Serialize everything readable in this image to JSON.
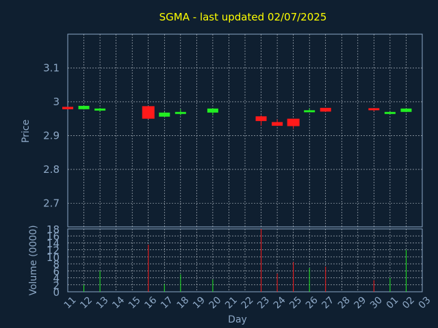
{
  "chart_data": {
    "type": "candlestick",
    "title": "SGMA - last updated 02/07/2025",
    "xlabel": "Day",
    "ylabel": "Price",
    "volume_label": "Volume (0000)",
    "categories": [
      "11",
      "12",
      "13",
      "14",
      "15",
      "16",
      "17",
      "18",
      "19",
      "20",
      "21",
      "22",
      "23",
      "24",
      "25",
      "26",
      "27",
      "28",
      "29",
      "30",
      "01",
      "02",
      "03"
    ],
    "price_ticks": [
      "3.1",
      "3",
      "2.9",
      "2.8",
      "2.7"
    ],
    "price_tick_values": [
      3.1,
      3.0,
      2.9,
      2.8,
      2.7
    ],
    "volume_ticks": [
      "18",
      "16",
      "14",
      "12",
      "10",
      "8",
      "6",
      "4",
      "2",
      "0"
    ],
    "volume_tick_values": [
      18,
      16,
      14,
      12,
      10,
      8,
      6,
      4,
      2,
      0
    ],
    "ylim": [
      2.63,
      3.2
    ],
    "vlim": [
      0,
      18
    ],
    "grid": true,
    "colors": {
      "up": "#22ee22",
      "down": "#ff1a1a",
      "grid": "#c8d0d8",
      "axis": "#8ea9c7",
      "title": "#ffff00",
      "bg": "#0f1f30"
    },
    "candles": [
      {
        "x": "11",
        "open": 2.985,
        "close": 2.978,
        "high": 2.985,
        "low": 2.978,
        "volume": 0
      },
      {
        "x": "12",
        "open": 2.978,
        "close": 2.988,
        "high": 2.989,
        "low": 2.977,
        "volume": 2
      },
      {
        "x": "13",
        "open": 2.978,
        "close": 2.98,
        "high": 2.982,
        "low": 2.97,
        "volume": 6
      },
      {
        "x": "16",
        "open": 2.987,
        "close": 2.95,
        "high": 2.988,
        "low": 2.949,
        "volume": 13.5
      },
      {
        "x": "17",
        "open": 2.956,
        "close": 2.968,
        "high": 2.97,
        "low": 2.955,
        "volume": 2.2
      },
      {
        "x": "18",
        "open": 2.966,
        "close": 2.97,
        "high": 2.978,
        "low": 2.96,
        "volume": 5
      },
      {
        "x": "20",
        "open": 2.968,
        "close": 2.98,
        "high": 2.98,
        "low": 2.96,
        "volume": 3.5
      },
      {
        "x": "23",
        "open": 2.957,
        "close": 2.943,
        "high": 2.96,
        "low": 2.93,
        "volume": 18
      },
      {
        "x": "24",
        "open": 2.94,
        "close": 2.929,
        "high": 2.948,
        "low": 2.928,
        "volume": 5.2
      },
      {
        "x": "25",
        "open": 2.95,
        "close": 2.928,
        "high": 2.95,
        "low": 2.92,
        "volume": 8.5
      },
      {
        "x": "26",
        "open": 2.97,
        "close": 2.975,
        "high": 2.981,
        "low": 2.969,
        "volume": 6.8
      },
      {
        "x": "27",
        "open": 2.982,
        "close": 2.971,
        "high": 2.982,
        "low": 2.97,
        "volume": 7.2
      },
      {
        "x": "30",
        "open": 2.981,
        "close": 2.976,
        "high": 2.981,
        "low": 2.972,
        "volume": 3.3
      },
      {
        "x": "01",
        "open": 2.966,
        "close": 2.97,
        "high": 2.971,
        "low": 2.965,
        "volume": 4
      },
      {
        "x": "02",
        "open": 2.97,
        "close": 2.98,
        "high": 2.98,
        "low": 2.969,
        "volume": 12
      }
    ]
  }
}
